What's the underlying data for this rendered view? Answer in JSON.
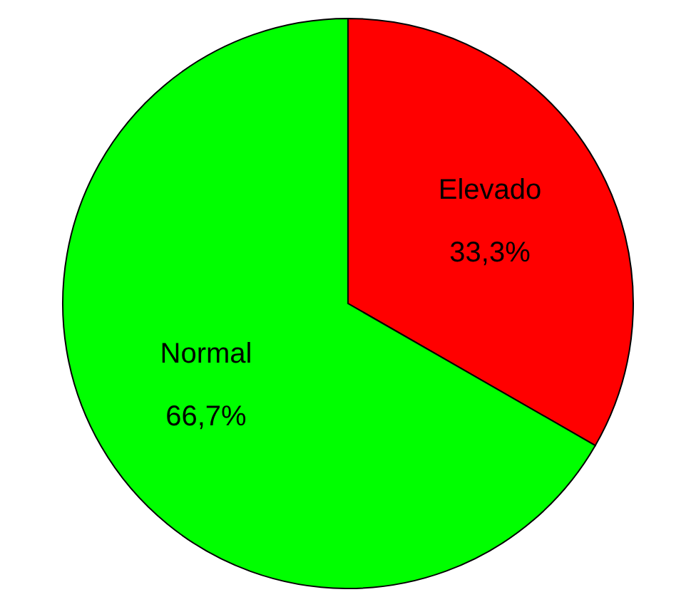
{
  "chart_data": {
    "type": "pie",
    "categories": [
      "Elevado",
      "Normal"
    ],
    "values": [
      33.3,
      66.7
    ],
    "colors": [
      "#ff0000",
      "#00ff00"
    ],
    "value_labels": [
      "33,3%",
      "66,7%"
    ]
  }
}
